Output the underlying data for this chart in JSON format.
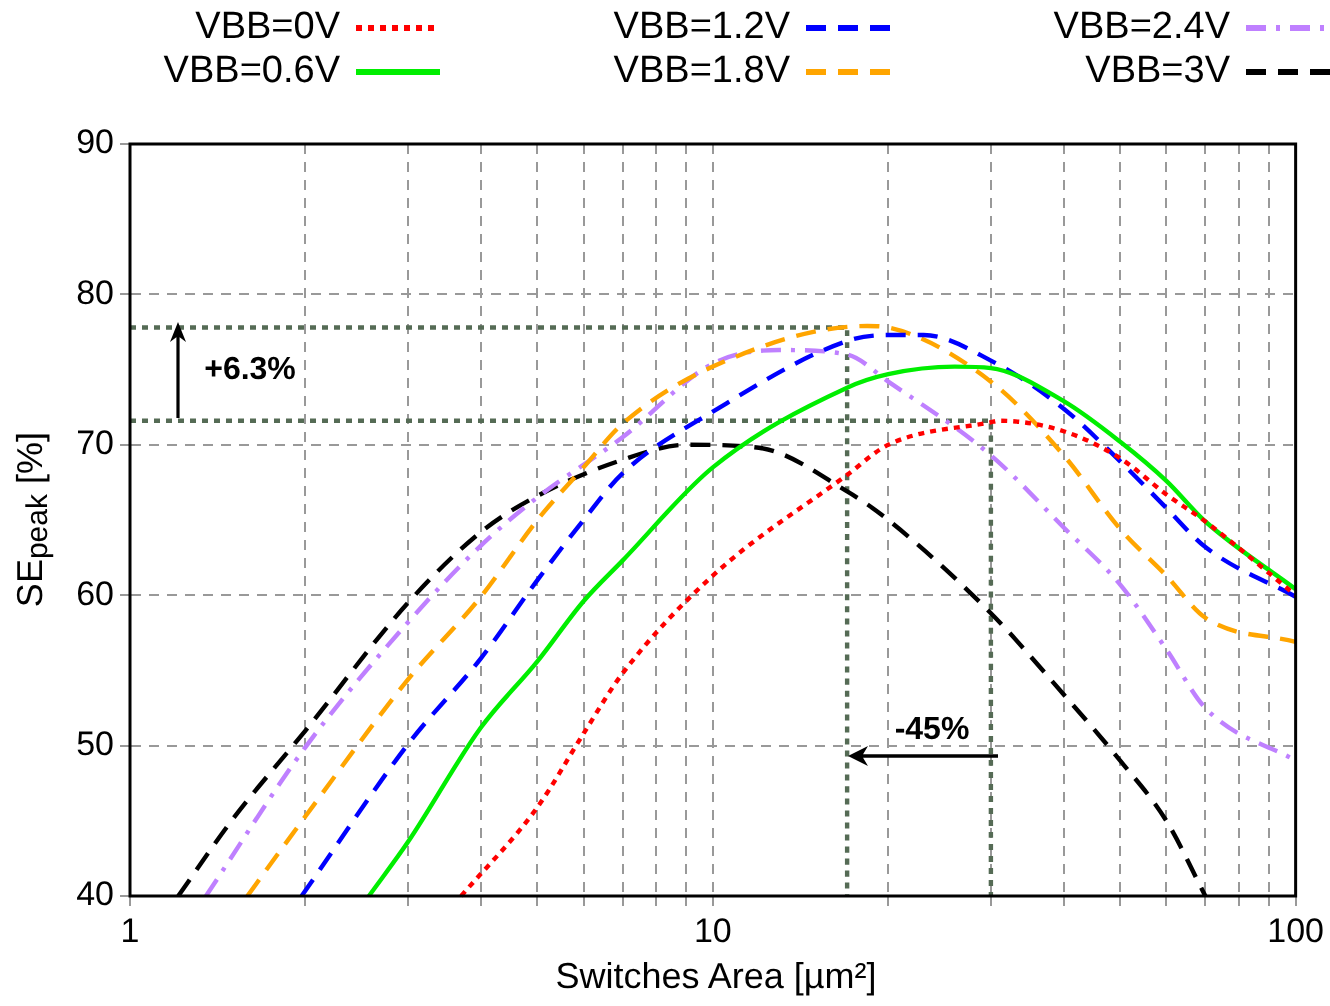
{
  "chart_data": {
    "type": "line",
    "xlabel": "Switches Area [µm²]",
    "ylabel": "SE$_{peak}$ [%]",
    "log": "x",
    "grid": true,
    "legend": "top",
    "marker": "none",
    "xlim": [
      1,
      100
    ],
    "xticks": [
      1,
      {
        "value": 2,
        "label": null
      },
      {
        "value": 3,
        "label": null
      },
      {
        "value": 4,
        "label": null
      },
      {
        "value": 5,
        "label": null
      },
      {
        "value": 6,
        "label": null
      },
      {
        "value": 7,
        "label": null
      },
      {
        "value": 8,
        "label": null
      },
      {
        "value": 9,
        "label": null
      },
      10,
      {
        "value": 20,
        "label": null
      },
      {
        "value": 30,
        "label": null
      },
      {
        "value": 40,
        "label": null
      },
      {
        "value": 50,
        "label": null
      },
      {
        "value": 60,
        "label": null
      },
      {
        "value": 70,
        "label": null
      },
      {
        "value": 80,
        "label": null
      },
      {
        "value": 90,
        "label": null
      },
      100
    ],
    "ylim": [
      40,
      90
    ],
    "yticks": [
      40,
      50,
      60,
      70,
      80,
      90
    ],
    "series": [
      {
        "name": "VBB=0V",
        "color": "#ff0000",
        "line_style": "dotted",
        "x": [
          3.7,
          5,
          6,
          7,
          10,
          17,
          20,
          30,
          31,
          40,
          50,
          60,
          70,
          100
        ],
        "values": [
          40,
          45.9,
          50.8,
          54.8,
          61.3,
          68,
          70,
          71.5,
          71.6,
          70.9,
          69.1,
          66.7,
          64.9,
          60
        ]
      },
      {
        "name": "VBB=0.6V",
        "color": "#00ee00",
        "line_style": "solid",
        "x": [
          2.57,
          3,
          4,
          5,
          6,
          7,
          10,
          17,
          20,
          26,
          30,
          40,
          50,
          60,
          70,
          100
        ],
        "values": [
          40,
          43.6,
          51.2,
          55.6,
          59.6,
          62.3,
          68.5,
          73.8,
          74.7,
          75.2,
          75.1,
          72.9,
          70.2,
          67.6,
          64.9,
          60.4
        ]
      },
      {
        "name": "VBB=1.2V",
        "color": "#0000ff",
        "line_style": "dashed",
        "x": [
          1.97,
          3,
          4,
          5,
          6,
          7,
          10,
          17,
          20,
          23,
          30,
          40,
          50,
          60,
          70,
          100
        ],
        "values": [
          40,
          50.1,
          55.8,
          61,
          65,
          68.1,
          72.2,
          76.9,
          77.3,
          77.3,
          75.6,
          72.4,
          68.9,
          65.8,
          63.2,
          59.9
        ]
      },
      {
        "name": "VBB=1.8V",
        "color": "#ffa500",
        "line_style": "dashed",
        "x": [
          1.59,
          2,
          3,
          4,
          5,
          6,
          7,
          10,
          18.4,
          20,
          30,
          40,
          50,
          60,
          70,
          100
        ],
        "values": [
          40,
          45.3,
          54.4,
          59.9,
          65,
          68.5,
          71.4,
          75.2,
          77.9,
          77.8,
          74.2,
          69.3,
          64.4,
          61.3,
          58.5,
          56.9
        ]
      },
      {
        "name": "VBB=2.4V",
        "color": "#bf80ff",
        "line_style": "dashdot",
        "x": [
          1.35,
          2,
          3,
          4,
          5,
          7,
          10,
          13,
          17,
          20,
          30,
          40,
          50,
          60,
          70,
          100
        ],
        "values": [
          40,
          49.9,
          58.2,
          63.3,
          66.5,
          70.5,
          75.4,
          76.3,
          76,
          74.2,
          69.3,
          64.5,
          60.7,
          56.4,
          52.5,
          49
        ]
      },
      {
        "name": "VBB=3V",
        "color": "#000000",
        "line_style": "dashed",
        "x": [
          1.21,
          1.5,
          2,
          3,
          4,
          5,
          7,
          9,
          12,
          17,
          20,
          30,
          40,
          50,
          60,
          70
        ],
        "values": [
          40,
          45.1,
          51,
          59.5,
          64.2,
          66.6,
          69,
          70,
          69.8,
          66.9,
          65,
          58.8,
          53.4,
          49,
          45,
          40
        ]
      },
      {
        "color": "#556b55",
        "line_style": "dotted",
        "x": [
          1,
          17,
          17
        ],
        "values": [
          77.8,
          77.8,
          40
        ]
      },
      {
        "color": "#556b55",
        "line_style": "dotted",
        "x": [
          1,
          30,
          30
        ],
        "values": [
          71.6,
          71.6,
          40
        ]
      }
    ],
    "annotations": [
      "+6.3%",
      "-45%"
    ]
  }
}
